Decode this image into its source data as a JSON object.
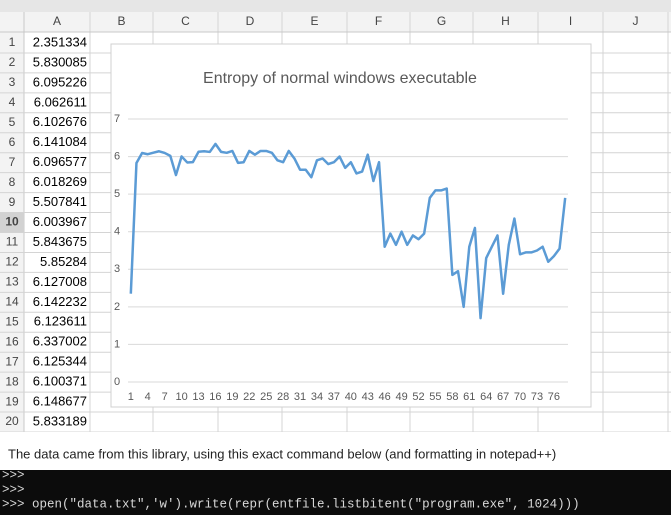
{
  "sheet": {
    "columns": [
      "A",
      "B",
      "C",
      "D",
      "E",
      "F",
      "G",
      "H",
      "I",
      "J"
    ],
    "rows": [
      1,
      2,
      3,
      4,
      5,
      6,
      7,
      8,
      9,
      10,
      11,
      12,
      13,
      14,
      15,
      16,
      17,
      18,
      19,
      20
    ],
    "active_row": 10,
    "column_a": [
      2.351334,
      5.830085,
      6.095226,
      6.062611,
      6.102676,
      6.141084,
      6.096577,
      6.018269,
      5.507841,
      6.003967,
      5.843675,
      5.85284,
      6.127008,
      6.142232,
      6.123611,
      6.337002,
      6.125344,
      6.100371,
      6.148677,
      5.833189
    ]
  },
  "chart_data": {
    "type": "line",
    "title": "Entropy of normal windows executable",
    "color": "#5b9bd5",
    "grid": true,
    "categories": [
      1,
      null,
      null,
      4,
      null,
      null,
      7,
      null,
      null,
      10,
      null,
      null,
      13,
      null,
      null,
      16,
      null,
      null,
      19,
      null,
      null,
      22,
      null,
      null,
      25,
      null,
      null,
      28,
      null,
      null,
      31,
      null,
      null,
      34,
      null,
      null,
      37,
      null,
      null,
      40,
      null,
      null,
      43,
      null,
      null,
      46,
      null,
      null,
      49,
      null,
      null,
      52,
      null,
      null,
      55,
      null,
      null,
      58,
      null,
      null,
      61,
      null,
      null,
      64,
      null,
      null,
      67,
      null,
      null,
      70,
      null,
      null,
      73,
      null,
      null,
      76,
      null,
      null
    ],
    "values": [
      2.351334,
      5.830085,
      6.095226,
      6.062611,
      6.102676,
      6.141084,
      6.096577,
      6.018269,
      5.507841,
      6.003967,
      5.843675,
      5.85284,
      6.127008,
      6.142232,
      6.123611,
      6.337002,
      6.125344,
      6.100371,
      6.148677,
      5.833189,
      5.85,
      6.15,
      6.05,
      6.15,
      6.15,
      6.1,
      5.9,
      5.85,
      6.15,
      5.95,
      5.65,
      5.65,
      5.45,
      5.9,
      5.95,
      5.8,
      5.85,
      6.0,
      5.7,
      5.85,
      5.55,
      5.6,
      6.05,
      5.35,
      5.85,
      3.6,
      3.95,
      3.65,
      4.0,
      3.65,
      3.9,
      3.8,
      3.95,
      4.9,
      5.1,
      5.1,
      5.15,
      2.85,
      2.95,
      2.0,
      3.6,
      4.1,
      1.7,
      3.3,
      3.6,
      3.9,
      2.35,
      3.65,
      4.35,
      3.4,
      3.45,
      3.45,
      3.5,
      3.6,
      3.2,
      3.35,
      3.55,
      4.9
    ],
    "ylim": [
      0,
      7
    ],
    "yticks": [
      0,
      1,
      2,
      3,
      4,
      5,
      6,
      7
    ]
  },
  "caption": "The data came from this library, using this exact command below (and formatting in notepad++)",
  "terminal": [
    ">>>",
    ">>>",
    ">>>  open(\"data.txt\",'w').write(repr(entfile.listbitent(\"program.exe\", 1024)))"
  ]
}
